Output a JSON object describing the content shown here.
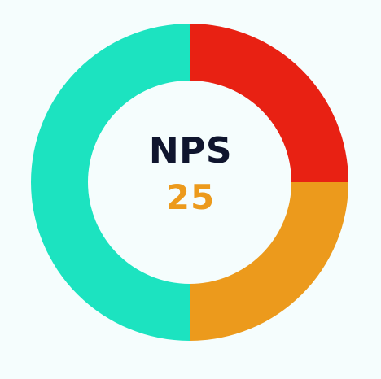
{
  "chart_data": {
    "type": "pie",
    "donut": true,
    "title": "",
    "segments": [
      {
        "name": "",
        "value": 25,
        "color": "#e82113"
      },
      {
        "name": "",
        "value": 25,
        "color": "#ec9a1c"
      },
      {
        "name": "",
        "value": 50,
        "color": "#1ce3c0"
      }
    ],
    "center_label": "NPS",
    "center_value": "25",
    "center_value_color": "#ec9a1c",
    "center_label_color": "#0f152e"
  }
}
